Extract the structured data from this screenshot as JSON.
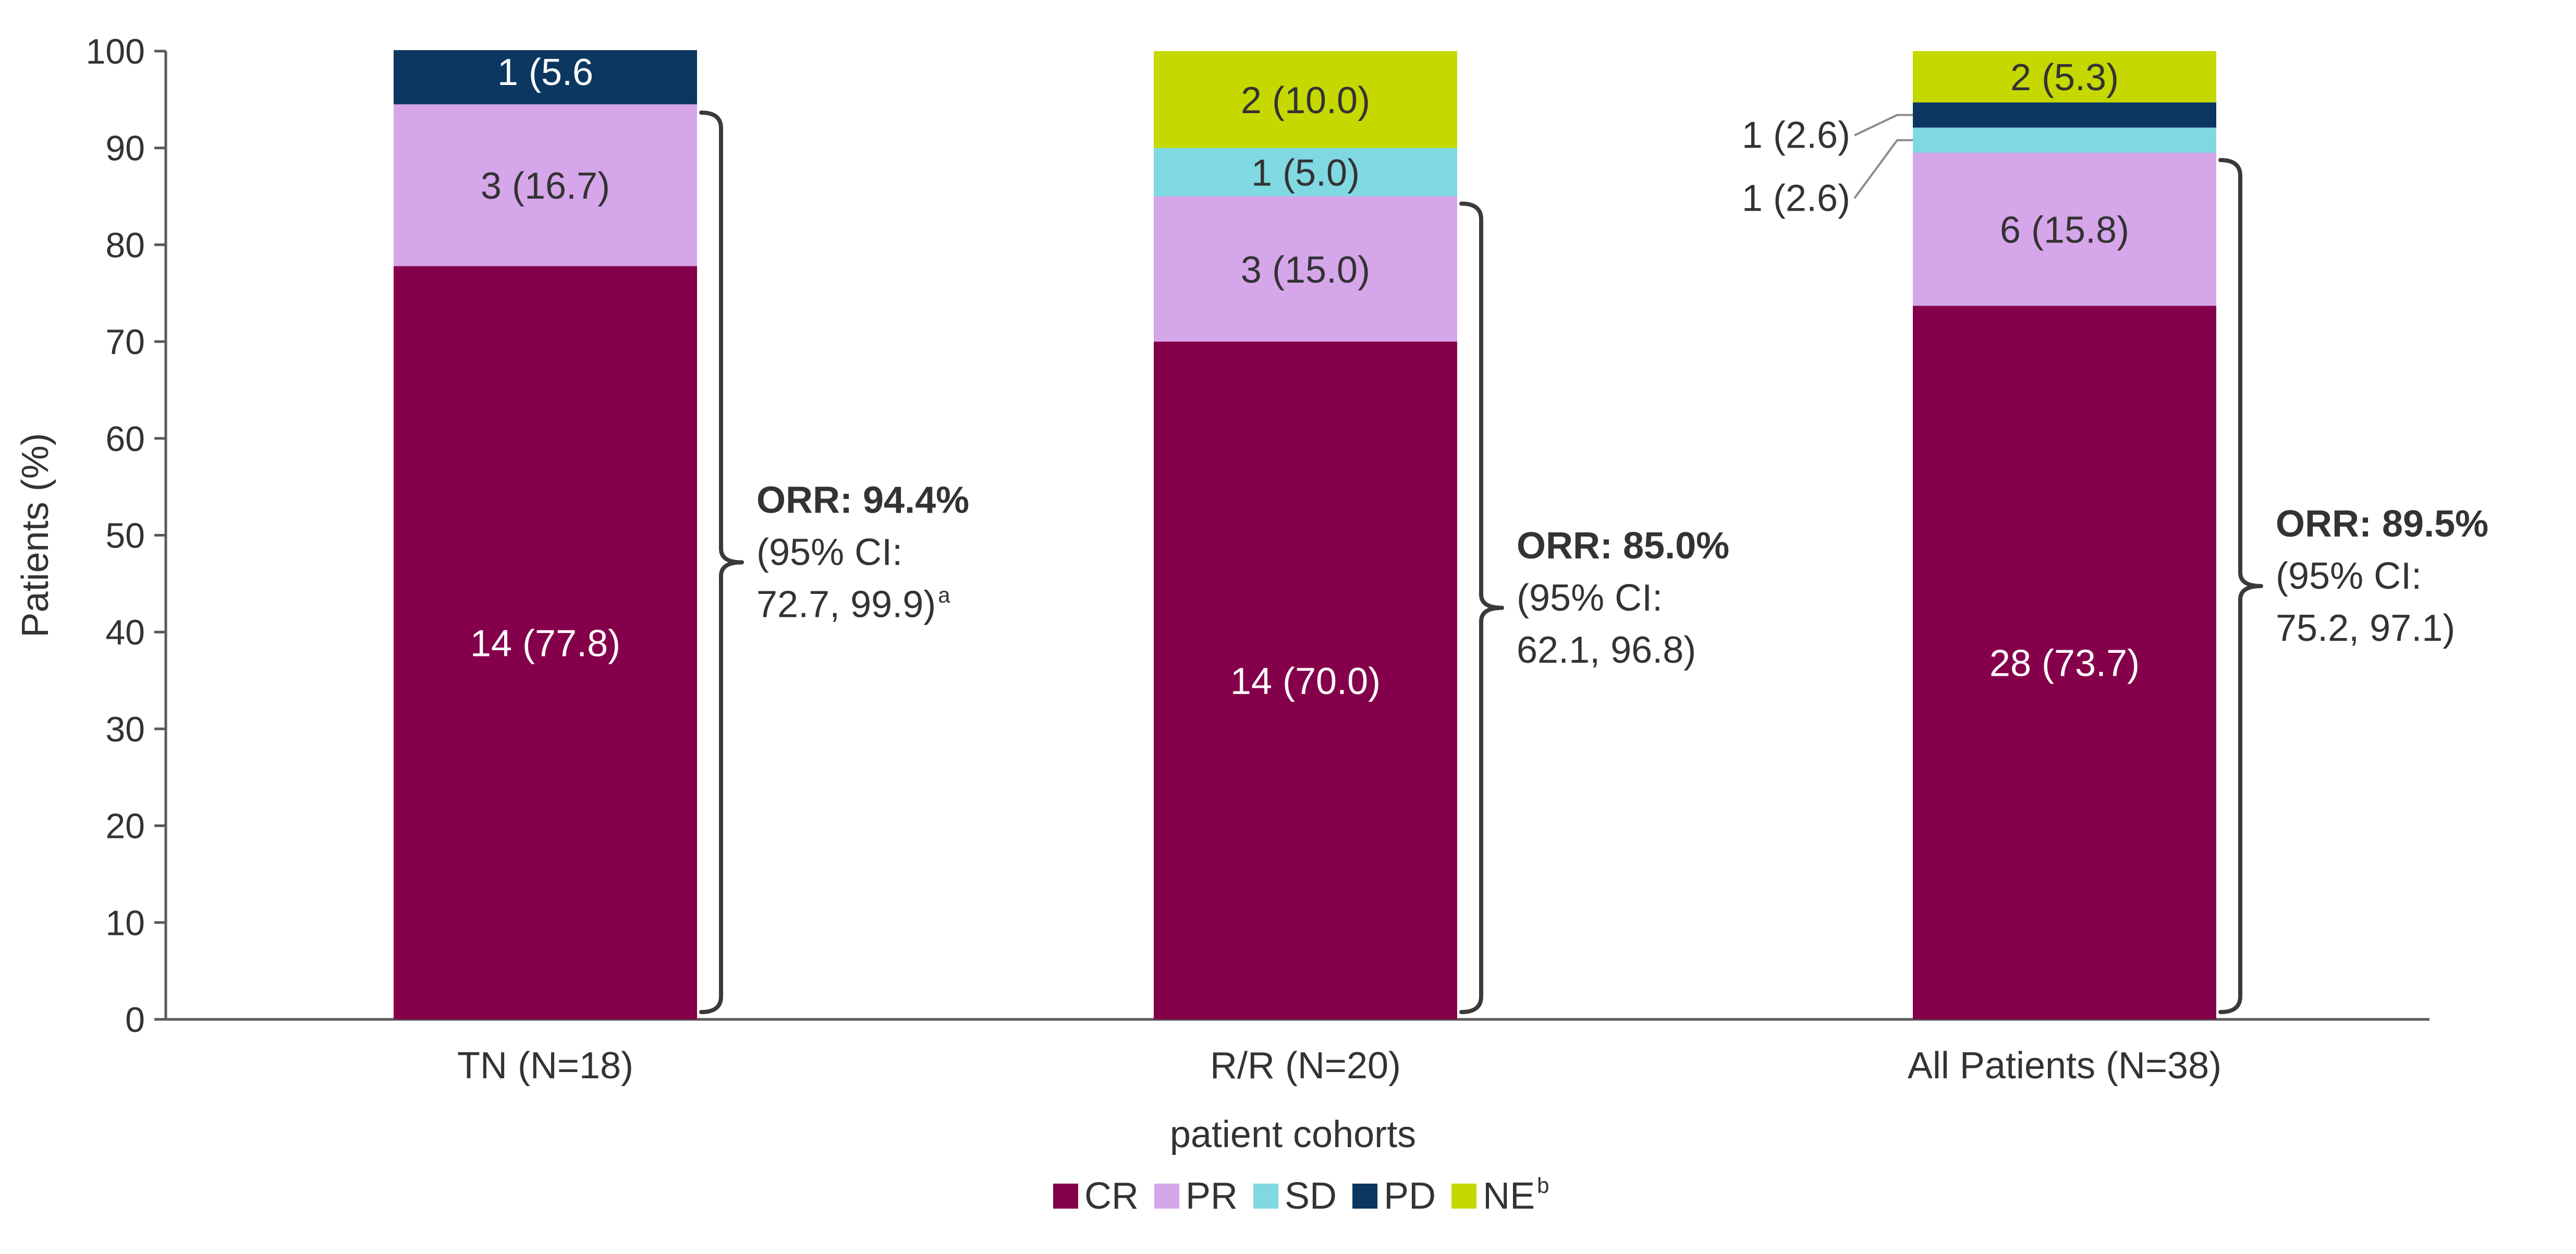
{
  "chart_data": {
    "type": "bar",
    "stacked": true,
    "title": "",
    "xlabel": "patient cohorts",
    "ylabel": "Patients (%)",
    "ylim": [
      0,
      100
    ],
    "yticks": [
      "0",
      "10",
      "20",
      "30",
      "40",
      "50",
      "60",
      "70",
      "80",
      "90",
      "100"
    ],
    "grid": false,
    "legend_position": "bottom",
    "categories": [
      "TN (N=18)",
      "R/R (N=20)",
      "All Patients (N=38)"
    ],
    "series": [
      {
        "name": "CR",
        "legend_label": "CR",
        "color": "#85004b",
        "values": [
          77.8,
          70.0,
          73.7
        ],
        "labels": [
          "14 (77.8)",
          "14 (70.0)",
          "28 (73.7)"
        ]
      },
      {
        "name": "PR",
        "legend_label": "PR",
        "color": "#d6a6ea",
        "values": [
          16.7,
          15.0,
          15.8
        ],
        "labels": [
          "3 (16.7)",
          "3 (15.0)",
          "6 (15.8)"
        ]
      },
      {
        "name": "SD",
        "legend_label": "SD",
        "color": "#80d8e2",
        "values": [
          0,
          5.0,
          2.6
        ],
        "labels": [
          "",
          "1 (5.0)",
          "1 (2.6)"
        ]
      },
      {
        "name": "PD",
        "legend_label": "PD",
        "color": "#0c3760",
        "values": [
          5.6,
          0,
          2.6
        ],
        "labels": [
          "1 (5.6",
          "",
          "1 (2.6)"
        ]
      },
      {
        "name": "NE",
        "legend_label": "NE",
        "legend_sup": "b",
        "color": "#c5d800",
        "values": [
          0,
          10.0,
          5.3
        ],
        "labels": [
          "",
          "2 (10.0)",
          "2 (5.3)"
        ]
      }
    ],
    "annotations": [
      {
        "category": "TN (N=18)",
        "title": "ORR: 94.4%",
        "line1": "(95% CI:",
        "line2": "72.7, 99.9)",
        "sup": "a",
        "range": [
          0,
          94.4
        ]
      },
      {
        "category": "R/R (N=20)",
        "title": "ORR: 85.0%",
        "line1": "(95% CI:",
        "line2": "62.1, 96.8)",
        "sup": "",
        "range": [
          0,
          85.0
        ]
      },
      {
        "category": "All Patients (N=38)",
        "title": "ORR: 89.5%",
        "line1": "(95% CI:",
        "line2": "75.2, 97.1)",
        "sup": "",
        "range": [
          0,
          89.5
        ]
      }
    ]
  }
}
